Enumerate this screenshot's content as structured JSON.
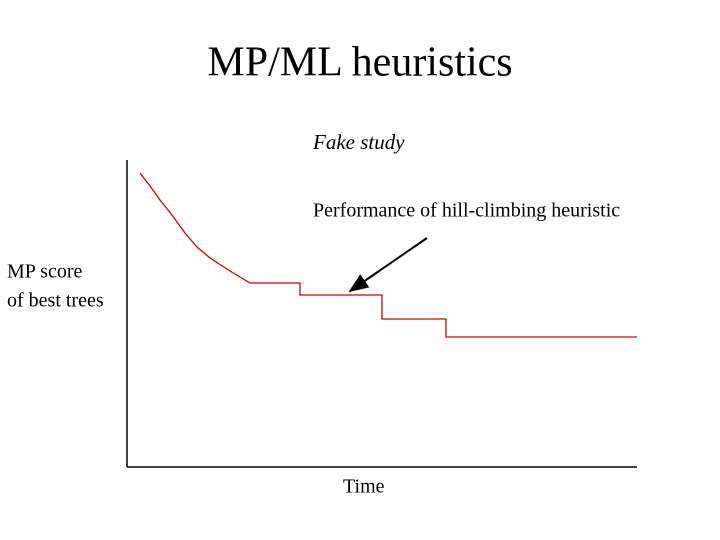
{
  "title": "MP/ML heuristics",
  "figure": {
    "caption": "Fake study",
    "annotation": "Performance of hill-climbing heuristic",
    "y_axis_label": [
      "MP score",
      "of best trees"
    ],
    "x_axis_label": "Time"
  }
}
